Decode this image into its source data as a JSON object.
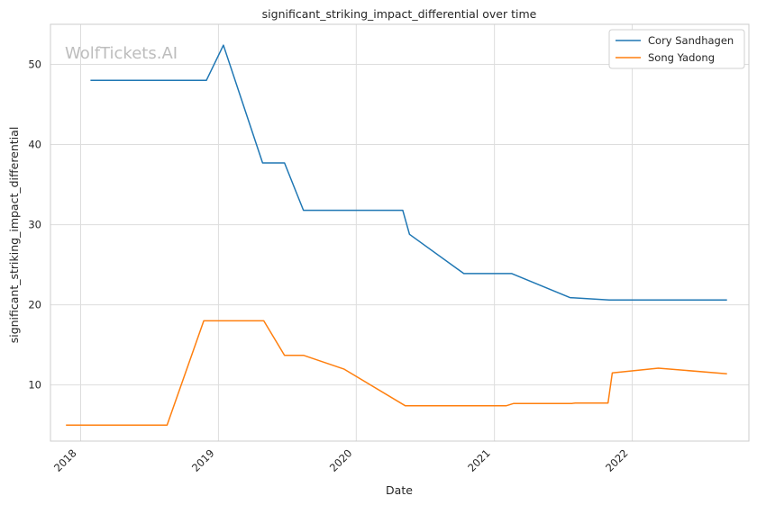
{
  "chart_data": {
    "type": "line",
    "title": "significant_striking_impact_differential over time",
    "xlabel": "Date",
    "ylabel": "significant_striking_impact_differential",
    "watermark": "WolfTickets.AI",
    "x_ticks": [
      "2018",
      "2019",
      "2020",
      "2021",
      "2022"
    ],
    "y_ticks": [
      "10",
      "20",
      "30",
      "40",
      "50"
    ],
    "ylim": [
      3.0,
      55.0
    ],
    "xlim": [
      "2017-10-13",
      "2022-11-06"
    ],
    "grid": true,
    "legend_position": "top-right",
    "series": [
      {
        "name": "Cory Sandhagen",
        "color": "#1f77b4",
        "points": [
          [
            "2018-01-27",
            48.0
          ],
          [
            "2018-11-30",
            48.0
          ],
          [
            "2019-01-14",
            52.4
          ],
          [
            "2019-04-28",
            37.7
          ],
          [
            "2019-06-25",
            37.7
          ],
          [
            "2019-08-14",
            31.8
          ],
          [
            "2020-05-03",
            31.8
          ],
          [
            "2020-05-21",
            28.8
          ],
          [
            "2020-10-12",
            23.9
          ],
          [
            "2021-02-16",
            23.9
          ],
          [
            "2021-07-20",
            20.9
          ],
          [
            "2021-11-01",
            20.6
          ],
          [
            "2022-09-09",
            20.6
          ]
        ]
      },
      {
        "name": "Song Yadong",
        "color": "#ff7f0e",
        "points": [
          [
            "2017-11-23",
            5.0
          ],
          [
            "2018-08-18",
            5.0
          ],
          [
            "2018-11-23",
            18.0
          ],
          [
            "2019-05-01",
            18.0
          ],
          [
            "2019-06-25",
            13.7
          ],
          [
            "2019-08-14",
            13.7
          ],
          [
            "2019-11-29",
            12.0
          ],
          [
            "2020-05-10",
            7.4
          ],
          [
            "2021-02-01",
            7.4
          ],
          [
            "2021-02-21",
            7.7
          ],
          [
            "2021-07-25",
            7.7
          ],
          [
            "2021-08-03",
            7.75
          ],
          [
            "2021-10-29",
            7.75
          ],
          [
            "2021-11-09",
            11.5
          ],
          [
            "2022-03-11",
            12.1
          ],
          [
            "2022-09-09",
            11.4
          ]
        ]
      }
    ]
  }
}
